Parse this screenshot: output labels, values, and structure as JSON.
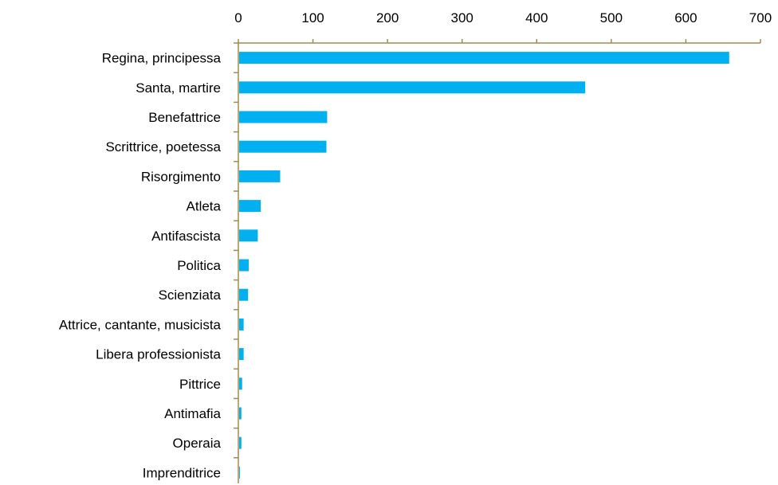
{
  "chart_data": {
    "type": "bar",
    "orientation": "horizontal",
    "x_axis_position": "top",
    "grid": false,
    "legend": "none",
    "title": "",
    "xlabel": "",
    "ylabel": "",
    "xlim": [
      0,
      700
    ],
    "xticks": [
      0,
      100,
      200,
      300,
      400,
      500,
      600,
      700
    ],
    "xtick_labels": [
      "0",
      "100",
      "200",
      "300",
      "400",
      "500",
      "600",
      "700"
    ],
    "categories": [
      "Regina, principessa",
      "Santa, martire",
      "Benefattrice",
      "Scrittrice, poetessa",
      "Risorgimento",
      "Atleta",
      "Antifascista",
      "Politica",
      "Scienziata",
      "Attrice, cantante, musicista",
      "Libera professionista",
      "Pittrice",
      "Antimafia",
      "Operaia",
      "Imprenditrice"
    ],
    "values": [
      657,
      464,
      118,
      117,
      55,
      29,
      25,
      13,
      12,
      6,
      6,
      4,
      3,
      3,
      1
    ],
    "colors": {
      "bar": "#00B0F0",
      "axis": "#A08C50",
      "text": "#000000"
    }
  }
}
